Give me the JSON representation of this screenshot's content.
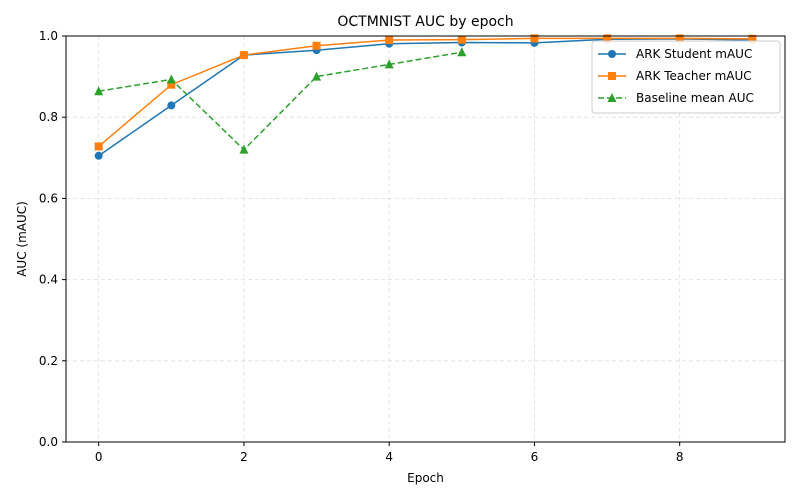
{
  "chart_data": {
    "type": "line",
    "title": "OCTMNIST AUC by epoch",
    "xlabel": "Epoch",
    "ylabel": "AUC (mAUC)",
    "xlim": [
      -0.45,
      9.45
    ],
    "ylim": [
      0.0,
      1.0
    ],
    "xticks": [
      0,
      2,
      4,
      6,
      8
    ],
    "yticks": [
      0.0,
      0.2,
      0.4,
      0.6,
      0.8,
      1.0
    ],
    "grid": true,
    "legend_position": "top-right",
    "series": [
      {
        "name": "ARK Student mAUC",
        "color": "#1f77b4",
        "marker": "circle",
        "linestyle": "solid",
        "x": [
          0,
          1,
          2,
          3,
          4,
          5,
          6,
          7,
          8,
          9
        ],
        "values": [
          0.705,
          0.829,
          0.953,
          0.965,
          0.981,
          0.984,
          0.983,
          0.992,
          0.993,
          0.99
        ]
      },
      {
        "name": "ARK Teacher mAUC",
        "color": "#ff7f0e",
        "marker": "square",
        "linestyle": "solid",
        "x": [
          0,
          1,
          2,
          3,
          4,
          5,
          6,
          7,
          8,
          9
        ],
        "values": [
          0.728,
          0.88,
          0.953,
          0.976,
          0.99,
          0.991,
          0.994,
          0.994,
          0.994,
          0.993
        ]
      },
      {
        "name": "Baseline mean AUC",
        "color": "#2ca02c",
        "marker": "triangle",
        "linestyle": "dashed",
        "x": [
          0,
          1,
          2,
          3,
          4,
          5
        ],
        "values": [
          0.864,
          0.893,
          0.72,
          0.9,
          0.93,
          0.96
        ]
      }
    ]
  }
}
